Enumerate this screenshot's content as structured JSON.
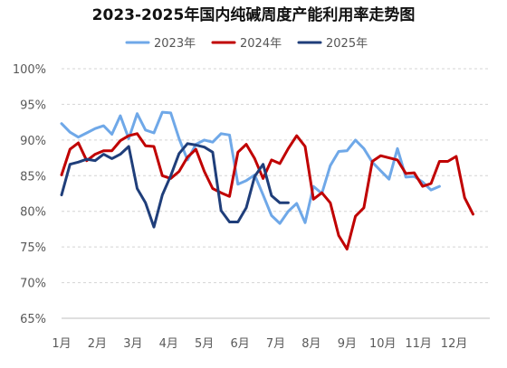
{
  "chart_data": {
    "type": "line",
    "title": "2023-2025年国内纯碱周度产能利用率走势图",
    "xlabel": "",
    "ylabel": "",
    "x_tick_labels": [
      "1月",
      "2月",
      "3月",
      "4月",
      "5月",
      "6月",
      "7月",
      "8月",
      "9月",
      "10月",
      "11月",
      "12月"
    ],
    "y_tick_labels": [
      "65%",
      "70%",
      "75%",
      "80%",
      "85%",
      "90%",
      "95%",
      "100%"
    ],
    "ylim": [
      65,
      100
    ],
    "xlim": [
      1,
      52
    ],
    "x_unit": "week",
    "grid": "horizontal-dashed",
    "legend_position": "top",
    "series": [
      {
        "name": "2023年",
        "color": "#6fa8e8",
        "values": [
          92.3,
          91.1,
          90.4,
          91.0,
          91.6,
          92.0,
          90.8,
          93.4,
          90.2,
          93.7,
          91.4,
          91.0,
          93.9,
          93.8,
          90.2,
          87.2,
          89.4,
          90.0,
          89.7,
          90.9,
          90.7,
          83.8,
          84.3,
          85.1,
          82.3,
          79.4,
          78.3,
          80.0,
          81.1,
          78.4,
          83.5,
          82.5,
          86.4,
          88.4,
          88.5,
          90.0,
          88.8,
          86.9,
          85.7,
          84.5,
          88.8,
          84.8,
          84.9,
          84.1,
          83.0,
          83.5
        ]
      },
      {
        "name": "2024年",
        "color": "#c00000",
        "values": [
          85.1,
          88.7,
          89.6,
          87.1,
          88.0,
          88.5,
          88.5,
          89.9,
          90.6,
          90.9,
          89.2,
          89.1,
          85.0,
          84.6,
          85.6,
          87.6,
          88.7,
          85.6,
          83.2,
          82.6,
          82.1,
          88.3,
          89.4,
          87.4,
          84.6,
          87.2,
          86.7,
          88.8,
          90.6,
          89.1,
          81.7,
          82.6,
          81.2,
          76.6,
          74.7,
          79.3,
          80.5,
          87.0,
          87.8,
          87.5,
          87.2,
          85.3,
          85.4,
          83.5,
          83.9,
          87.0,
          87.0,
          87.7,
          81.9,
          79.6
        ]
      },
      {
        "name": "2025年",
        "color": "#1f3e7a",
        "values": [
          82.3,
          86.6,
          86.9,
          87.3,
          87.1,
          88.0,
          87.4,
          88.0,
          89.1,
          83.2,
          81.2,
          77.8,
          82.3,
          85.0,
          88.1,
          89.5,
          89.3,
          89.0,
          88.3,
          80.1,
          78.5,
          78.5,
          80.5,
          84.9,
          86.6,
          82.2,
          81.2,
          81.2
        ]
      }
    ]
  }
}
